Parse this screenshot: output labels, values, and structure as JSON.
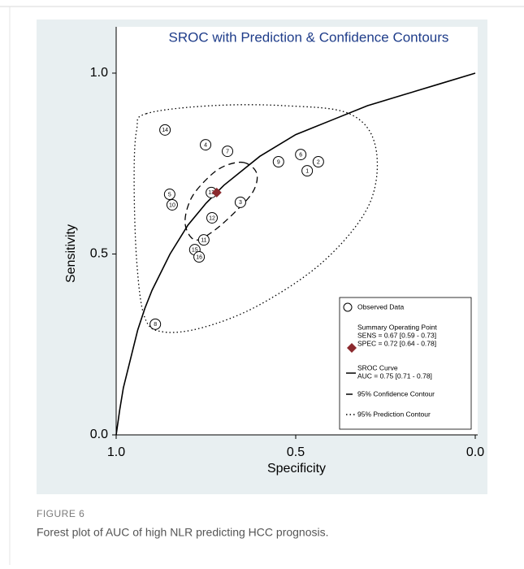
{
  "chart_data": {
    "type": "sroc",
    "title": "SROC with Prediction & Confidence Contours",
    "x_label": "Specificity",
    "y_label": "Sensitivity",
    "xlim": [
      1,
      0
    ],
    "ylim": [
      0,
      1.128
    ],
    "xticks": [
      {
        "value": 1,
        "label": "1.0"
      },
      0.5,
      {
        "value": 0,
        "label": "0.0"
      }
    ],
    "yticks": [
      {
        "value": 0,
        "label": "0.0"
      },
      0.5,
      {
        "value": 1,
        "label": "1.0"
      }
    ],
    "series": [
      {
        "name": "Observed Data",
        "kind": "points",
        "color": "#000000",
        "labels": [
          "14",
          "4",
          "7",
          "9",
          "6",
          "2",
          "1",
          "5",
          "10",
          "13",
          "3",
          "12",
          "11",
          "15",
          "16",
          "8"
        ],
        "x": [
          0.864,
          0.751,
          0.69,
          0.548,
          0.486,
          0.437,
          0.468,
          0.851,
          0.844,
          0.735,
          0.654,
          0.733,
          0.756,
          0.781,
          0.769,
          0.891
        ],
        "values": [
          0.843,
          0.802,
          0.784,
          0.755,
          0.775,
          0.755,
          0.73,
          0.665,
          0.636,
          0.67,
          0.643,
          0.6,
          0.539,
          0.512,
          0.492,
          0.306
        ]
      },
      {
        "name": "Summary Operating Point",
        "kind": "summary",
        "color": "#8b2a2e",
        "details": [
          "SENS = 0.67 [0.59 - 0.73]",
          "SPEC = 0.72 [0.64 - 0.78]"
        ],
        "x": [
          0.72
        ],
        "values": [
          0.67
        ]
      },
      {
        "name": "SROC Curve",
        "kind": "curve",
        "color": "#000000",
        "details": [
          "AUC = 0.75 [0.71 - 0.78]"
        ],
        "x": [
          1.0,
          0.99,
          0.98,
          0.96,
          0.94,
          0.92,
          0.9,
          0.85,
          0.8,
          0.75,
          0.7,
          0.6,
          0.5,
          0.4,
          0.3,
          0.2,
          0.1,
          0.0
        ],
        "values": [
          0,
          0.07,
          0.13,
          0.21,
          0.29,
          0.35,
          0.4,
          0.5,
          0.58,
          0.64,
          0.69,
          0.77,
          0.83,
          0.87,
          0.91,
          0.94,
          0.97,
          1.0
        ]
      },
      {
        "name": "95% Confidence Contour",
        "kind": "contour",
        "dash": "8 5",
        "color": "#000000",
        "x": [
          0.645,
          0.609,
          0.618,
          0.667,
          0.731,
          0.781,
          0.808,
          0.792,
          0.747,
          0.701
        ],
        "values": [
          0.753,
          0.724,
          0.674,
          0.618,
          0.562,
          0.539,
          0.584,
          0.652,
          0.708,
          0.742
        ]
      },
      {
        "name": "95% Prediction Contour",
        "kind": "contour",
        "dash": "1.5 3",
        "color": "#000000",
        "x": [
          0.916,
          0.735,
          0.532,
          0.351,
          0.278,
          0.294,
          0.419,
          0.6,
          0.758,
          0.871,
          0.921,
          0.943,
          0.95,
          0.943
        ],
        "values": [
          0.888,
          0.91,
          0.91,
          0.888,
          0.798,
          0.64,
          0.483,
          0.36,
          0.297,
          0.285,
          0.326,
          0.483,
          0.708,
          0.843
        ]
      }
    ]
  },
  "figure": {
    "label": "FIGURE 6",
    "caption": "Forest plot of AUC of high NLR predicting HCC prognosis."
  }
}
